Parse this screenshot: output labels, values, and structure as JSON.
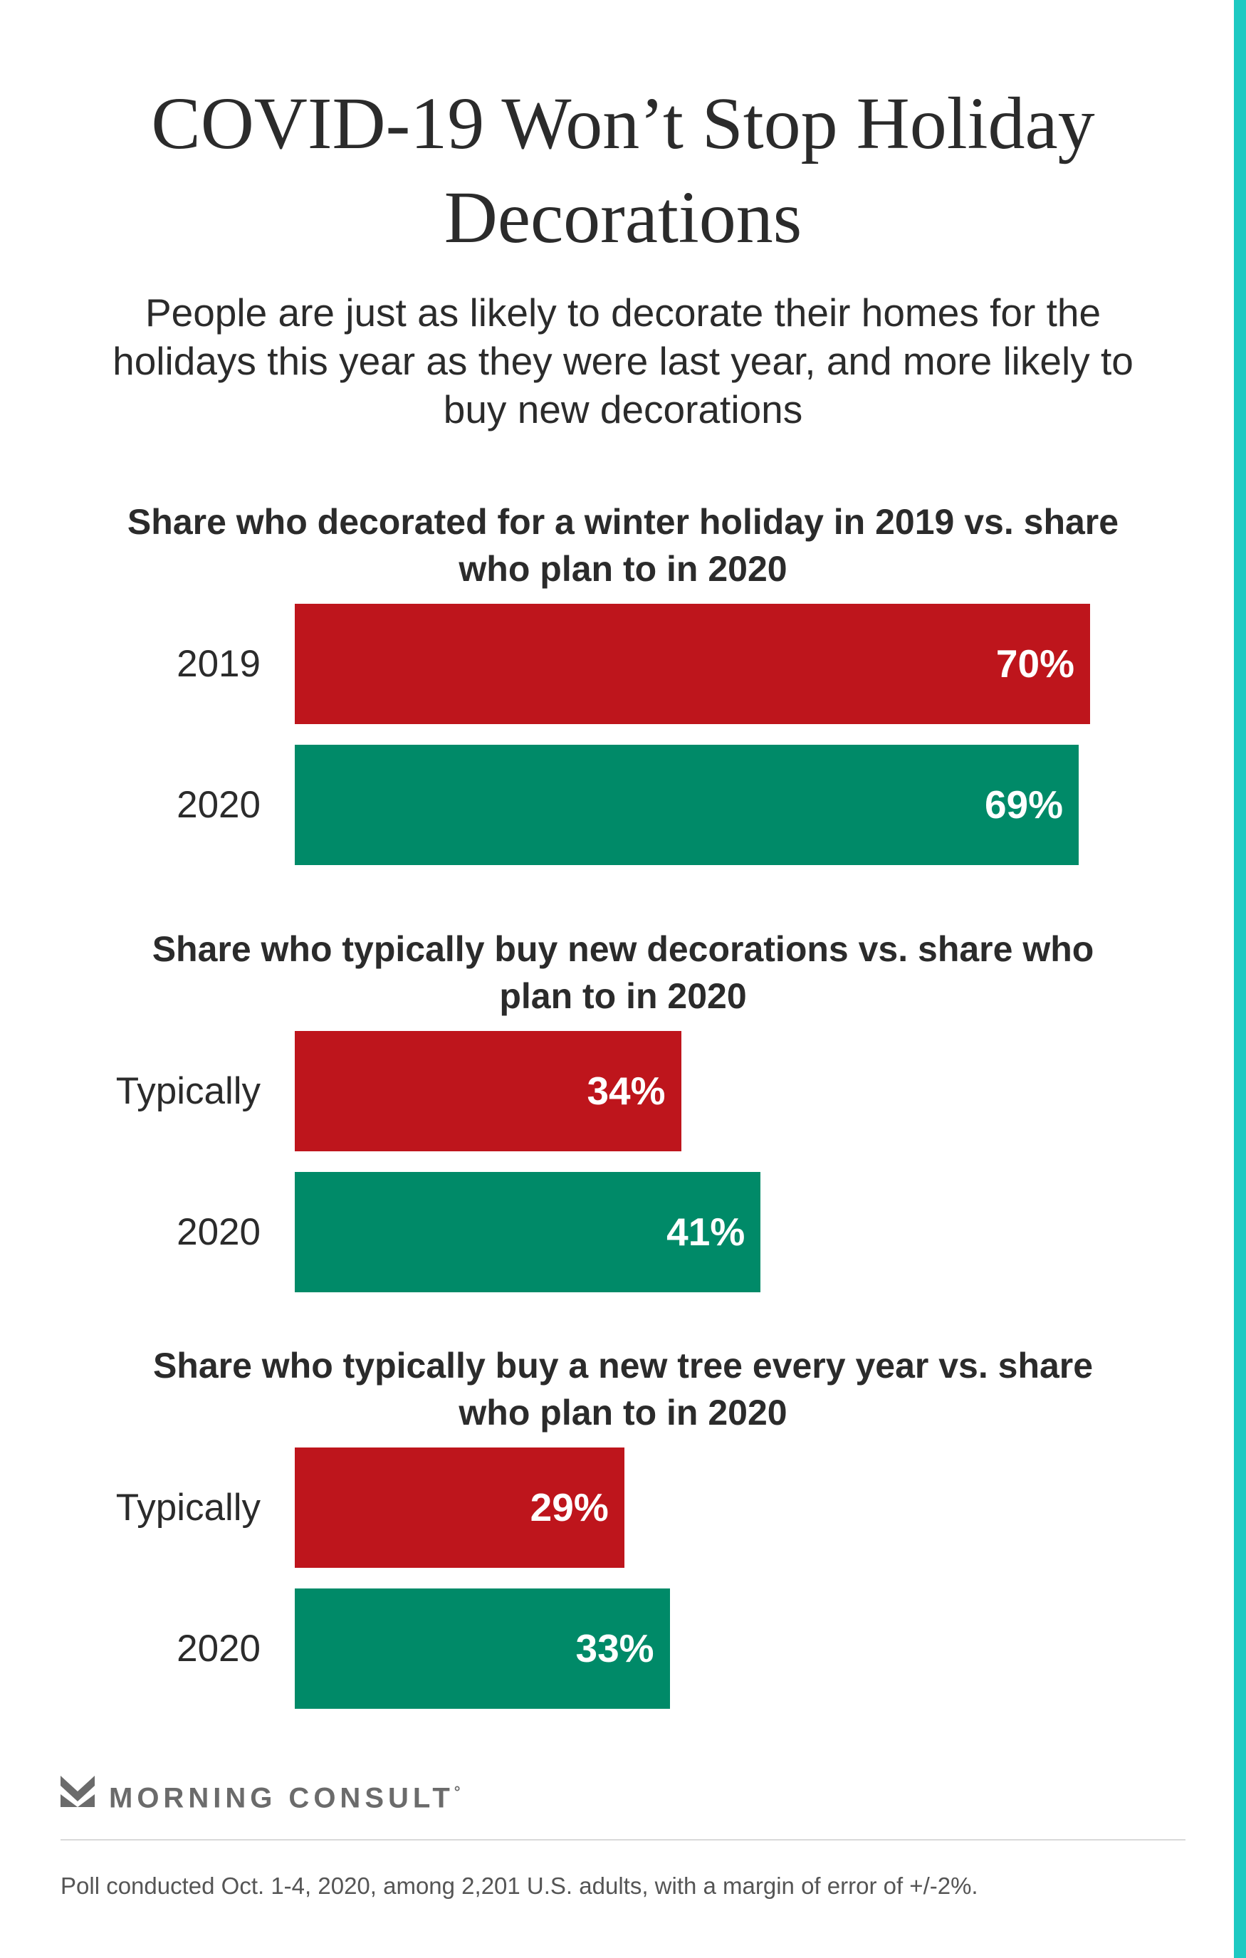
{
  "colors": {
    "accent_strip": "#1ec9c2",
    "red": "#be151c",
    "green": "#008a68"
  },
  "title": "COVID-19 Won’t Stop Holiday Decorations",
  "subtitle": "People are just as likely to decorate their homes for the holidays this year as they were last year, and more likely to buy new decorations",
  "chart_data": [
    {
      "type": "bar",
      "orientation": "horizontal",
      "title": "Share who decorated for a winter holiday in 2019 vs. share who plan to in 2020",
      "categories": [
        "2019",
        "2020"
      ],
      "values": [
        70,
        69
      ],
      "value_labels": [
        "70%",
        "69%"
      ],
      "xlim": [
        0,
        70
      ],
      "grid": false
    },
    {
      "type": "bar",
      "orientation": "horizontal",
      "title": "Share who typically buy new decorations vs. share who plan to in 2020",
      "categories": [
        "Typically",
        "2020"
      ],
      "values": [
        34,
        41
      ],
      "value_labels": [
        "34%",
        "41%"
      ],
      "xlim": [
        0,
        70
      ],
      "grid": false
    },
    {
      "type": "bar",
      "orientation": "horizontal",
      "title": "Share who typically buy a new tree every year vs. share who plan to in 2020",
      "categories": [
        "Typically",
        "2020"
      ],
      "values": [
        29,
        33
      ],
      "value_labels": [
        "29%",
        "33%"
      ],
      "xlim": [
        0,
        70
      ],
      "grid": false
    }
  ],
  "brand": {
    "logo_icon": "morning-consult-logo-icon",
    "name": "MORNING CONSULT",
    "mark": "°"
  },
  "footnote": "Poll conducted Oct. 1-4, 2020, among 2,201 U.S. adults, with a margin of error of +/-2%."
}
